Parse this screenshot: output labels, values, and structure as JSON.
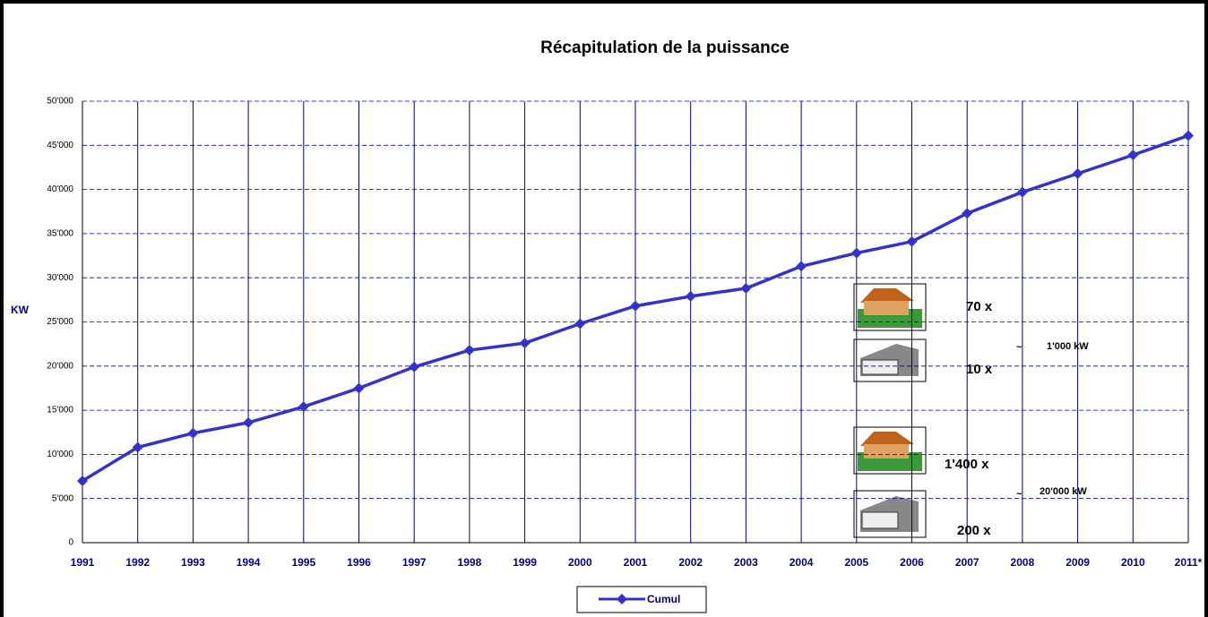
{
  "chart_data": {
    "type": "line",
    "title": "Récapitulation de la puissance",
    "y_label": "KW",
    "categories": [
      "1991",
      "1992",
      "1993",
      "1994",
      "1995",
      "1996",
      "1997",
      "1998",
      "1999",
      "2000",
      "2001",
      "2002",
      "2003",
      "2004",
      "2005",
      "2006",
      "2007",
      "2008",
      "2009",
      "2010",
      "2011*"
    ],
    "series": [
      {
        "name": "Cumul",
        "color": "#3333cc",
        "values": [
          7000,
          10800,
          12400,
          13600,
          15400,
          17500,
          19900,
          21800,
          22600,
          24800,
          26800,
          27900,
          28800,
          31300,
          32800,
          34100,
          37300,
          39700,
          41800,
          43900,
          46100
        ]
      }
    ],
    "ylim": [
      0,
      50000
    ],
    "yticks": [
      0,
      {
        "value": 5000,
        "label": "5'000"
      },
      {
        "value": 10000,
        "label": "10'000"
      },
      {
        "value": 15000,
        "label": "15'000"
      },
      {
        "value": 20000,
        "label": "20'000"
      },
      {
        "value": 25000,
        "label": "25'000"
      },
      {
        "value": 30000,
        "label": "30'000"
      },
      {
        "value": 35000,
        "label": "35'000"
      },
      {
        "value": 40000,
        "label": "40'000"
      },
      {
        "value": 45000,
        "label": "45'000"
      },
      {
        "value": 50000,
        "label": "50'000"
      }
    ],
    "grid": true,
    "legend": "bottom",
    "annotations": [
      "70 x",
      "10 x",
      "~",
      "1'000 kW",
      "1'400 x",
      "~",
      "20'000 kW",
      "200 x"
    ]
  }
}
